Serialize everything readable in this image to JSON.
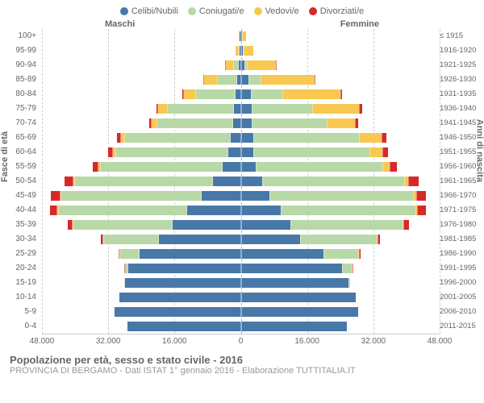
{
  "legend": [
    {
      "label": "Celibi/Nubili",
      "color": "#4878a8"
    },
    {
      "label": "Coniugati/e",
      "color": "#b8d8a8"
    },
    {
      "label": "Vedovi/e",
      "color": "#f8c850"
    },
    {
      "label": "Divorziati/e",
      "color": "#d82828"
    }
  ],
  "gender_left": "Maschi",
  "gender_right": "Femmine",
  "y_title_left": "Fasce di età",
  "y_title_right": "Anni di nascita",
  "title": "Popolazione per età, sesso e stato civile - 2016",
  "subtitle": "PROVINCIA DI BERGAMO - Dati ISTAT 1° gennaio 2016 - Elaborazione TUTTITALIA.IT",
  "x_max": 48000,
  "x_ticks": [
    {
      "v": -48000,
      "label": "48.000"
    },
    {
      "v": -32000,
      "label": "32.000"
    },
    {
      "v": -16000,
      "label": "16.000"
    },
    {
      "v": 0,
      "label": "0"
    },
    {
      "v": 16000,
      "label": "16.000"
    },
    {
      "v": 32000,
      "label": "32.000"
    },
    {
      "v": 48000,
      "label": "48.000"
    }
  ],
  "grid_positions": [
    -48000,
    -32000,
    -16000,
    0,
    16000,
    32000,
    48000
  ],
  "colors": [
    "#4878a8",
    "#b8d8a8",
    "#f8c850",
    "#d82828"
  ],
  "rows": [
    {
      "age": "100+",
      "year": "≤ 1915",
      "m": [
        20,
        0,
        120,
        0
      ],
      "f": [
        50,
        0,
        750,
        0
      ]
    },
    {
      "age": "95-99",
      "year": "1916-1920",
      "m": [
        80,
        50,
        500,
        0
      ],
      "f": [
        200,
        50,
        2100,
        0
      ]
    },
    {
      "age": "90-94",
      "year": "1921-1925",
      "m": [
        300,
        900,
        1900,
        20
      ],
      "f": [
        700,
        400,
        6800,
        40
      ]
    },
    {
      "age": "85-89",
      "year": "1926-1930",
      "m": [
        700,
        4500,
        3000,
        60
      ],
      "f": [
        1700,
        2700,
        12800,
        120
      ]
    },
    {
      "age": "80-84",
      "year": "1931-1935",
      "m": [
        1000,
        9500,
        2700,
        120
      ],
      "f": [
        2200,
        7500,
        13800,
        240
      ]
    },
    {
      "age": "75-79",
      "year": "1936-1940",
      "m": [
        1400,
        15800,
        2100,
        260
      ],
      "f": [
        2500,
        14300,
        11200,
        460
      ]
    },
    {
      "age": "70-74",
      "year": "1941-1945",
      "m": [
        1600,
        18200,
        1200,
        400
      ],
      "f": [
        2400,
        18000,
        6600,
        620
      ]
    },
    {
      "age": "65-69",
      "year": "1946-1950",
      "m": [
        2300,
        25200,
        900,
        750
      ],
      "f": [
        2800,
        25400,
        5100,
        1050
      ]
    },
    {
      "age": "60-64",
      "year": "1951-1955",
      "m": [
        2900,
        26800,
        550,
        1000
      ],
      "f": [
        2900,
        27700,
        2900,
        1300
      ]
    },
    {
      "age": "55-59",
      "year": "1956-1960",
      "m": [
        4100,
        29300,
        300,
        1350
      ],
      "f": [
        3500,
        30200,
        1600,
        1700
      ]
    },
    {
      "age": "50-54",
      "year": "1961-1965",
      "m": [
        6500,
        33200,
        200,
        1800
      ],
      "f": [
        5000,
        34000,
        900,
        2200
      ]
    },
    {
      "age": "45-49",
      "year": "1966-1970",
      "m": [
        9200,
        33700,
        130,
        2000
      ],
      "f": [
        6700,
        34500,
        500,
        2300
      ]
    },
    {
      "age": "40-44",
      "year": "1971-1975",
      "m": [
        12800,
        30800,
        70,
        1700
      ],
      "f": [
        9500,
        32200,
        280,
        1900
      ]
    },
    {
      "age": "35-39",
      "year": "1976-1980",
      "m": [
        16200,
        23800,
        40,
        1000
      ],
      "f": [
        11800,
        26800,
        150,
        1150
      ]
    },
    {
      "age": "30-34",
      "year": "1981-1985",
      "m": [
        19500,
        13200,
        15,
        350
      ],
      "f": [
        14200,
        18200,
        60,
        450
      ]
    },
    {
      "age": "25-29",
      "year": "1986-1990",
      "m": [
        24200,
        4500,
        5,
        70
      ],
      "f": [
        19800,
        8200,
        20,
        120
      ]
    },
    {
      "age": "20-24",
      "year": "1991-1995",
      "m": [
        27000,
        650,
        0,
        5
      ],
      "f": [
        24200,
        2100,
        5,
        15
      ]
    },
    {
      "age": "15-19",
      "year": "1996-2000",
      "m": [
        27800,
        15,
        0,
        0
      ],
      "f": [
        25800,
        150,
        0,
        0
      ]
    },
    {
      "age": "10-14",
      "year": "2001-2005",
      "m": [
        29200,
        0,
        0,
        0
      ],
      "f": [
        27500,
        0,
        0,
        0
      ]
    },
    {
      "age": "5-9",
      "year": "2006-2010",
      "m": [
        30200,
        0,
        0,
        0
      ],
      "f": [
        28200,
        0,
        0,
        0
      ]
    },
    {
      "age": "0-4",
      "year": "2011-2015",
      "m": [
        27200,
        0,
        0,
        0
      ],
      "f": [
        25500,
        0,
        0,
        0
      ]
    }
  ]
}
